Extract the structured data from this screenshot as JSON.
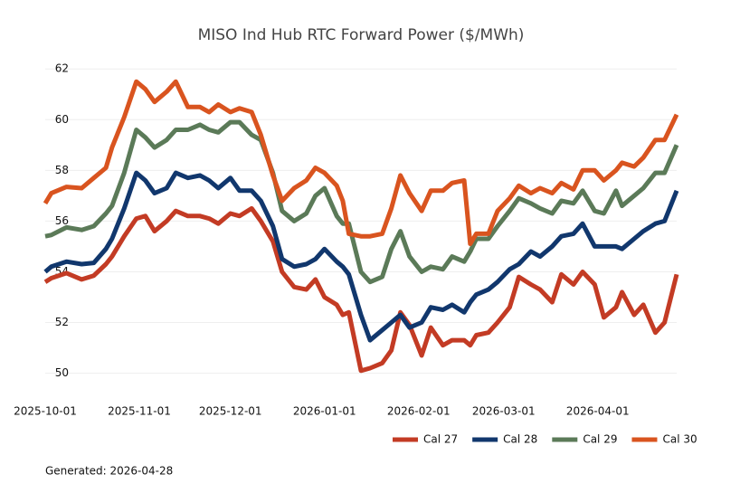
{
  "chart_data": {
    "type": "line",
    "title": "MISO Ind Hub RTC Forward Power ($/MWh)",
    "footnote": "Generated: 2026-04-28",
    "x": [
      "2025-10-01",
      "2025-10-03",
      "2025-10-08",
      "2025-10-13",
      "2025-10-17",
      "2025-10-21",
      "2025-10-23",
      "2025-10-27",
      "2025-10-31",
      "2025-11-03",
      "2025-11-06",
      "2025-11-10",
      "2025-11-13",
      "2025-11-17",
      "2025-11-21",
      "2025-11-24",
      "2025-11-27",
      "2025-12-01",
      "2025-12-04",
      "2025-12-08",
      "2025-12-11",
      "2025-12-15",
      "2025-12-18",
      "2025-12-22",
      "2025-12-26",
      "2025-12-29",
      "2026-01-01",
      "2026-01-05",
      "2026-01-07",
      "2026-01-09",
      "2026-01-13",
      "2026-01-16",
      "2026-01-20",
      "2026-01-23",
      "2026-01-26",
      "2026-01-29",
      "2026-02-02",
      "2026-02-05",
      "2026-02-09",
      "2026-02-12",
      "2026-02-16",
      "2026-02-18",
      "2026-02-20",
      "2026-02-24",
      "2026-02-27",
      "2026-03-03",
      "2026-03-06",
      "2026-03-10",
      "2026-03-13",
      "2026-03-17",
      "2026-03-20",
      "2026-03-24",
      "2026-03-27",
      "2026-03-31",
      "2026-04-03",
      "2026-04-07",
      "2026-04-09",
      "2026-04-13",
      "2026-04-16",
      "2026-04-20",
      "2026-04-23",
      "2026-04-27"
    ],
    "series": [
      {
        "name": "Cal 27",
        "color": "#c33b24",
        "values": [
          53.6,
          53.75,
          53.95,
          53.7,
          53.85,
          54.3,
          54.6,
          55.4,
          56.1,
          56.2,
          55.6,
          56.0,
          56.4,
          56.2,
          56.2,
          56.1,
          55.9,
          56.3,
          56.2,
          56.5,
          56.0,
          55.2,
          54.0,
          53.4,
          53.3,
          53.7,
          53.0,
          52.7,
          52.3,
          52.4,
          50.1,
          50.2,
          50.4,
          50.9,
          52.4,
          51.9,
          50.7,
          51.8,
          51.1,
          51.3,
          51.3,
          51.1,
          51.5,
          51.6,
          52.0,
          52.6,
          53.8,
          53.5,
          53.3,
          52.8,
          53.9,
          53.5,
          54.0,
          53.5,
          52.2,
          52.6,
          53.2,
          52.3,
          52.7,
          51.6,
          52.0,
          53.9
        ]
      },
      {
        "name": "Cal 28",
        "color": "#11376d",
        "values": [
          54.0,
          54.2,
          54.4,
          54.3,
          54.35,
          54.9,
          55.3,
          56.5,
          57.9,
          57.6,
          57.1,
          57.3,
          57.9,
          57.7,
          57.8,
          57.6,
          57.3,
          57.7,
          57.2,
          57.2,
          56.8,
          55.8,
          54.5,
          54.2,
          54.3,
          54.5,
          54.9,
          54.4,
          54.2,
          53.9,
          52.3,
          51.3,
          51.7,
          52.0,
          52.3,
          51.8,
          52.0,
          52.6,
          52.5,
          52.7,
          52.4,
          52.8,
          53.1,
          53.3,
          53.6,
          54.1,
          54.3,
          54.8,
          54.6,
          55.0,
          55.4,
          55.5,
          55.9,
          55.0,
          55.0,
          55.0,
          54.9,
          55.3,
          55.6,
          55.9,
          56.0,
          57.2
        ]
      },
      {
        "name": "Cal 29",
        "color": "#5b7a58",
        "values": [
          55.4,
          55.45,
          55.75,
          55.65,
          55.8,
          56.3,
          56.6,
          57.9,
          59.6,
          59.3,
          58.9,
          59.2,
          59.6,
          59.6,
          59.8,
          59.6,
          59.5,
          59.9,
          59.9,
          59.4,
          59.2,
          57.9,
          56.4,
          56.0,
          56.3,
          57.0,
          57.3,
          56.2,
          55.9,
          55.9,
          54.0,
          53.6,
          53.8,
          54.9,
          55.6,
          54.6,
          54.0,
          54.2,
          54.1,
          54.6,
          54.4,
          54.8,
          55.3,
          55.3,
          55.8,
          56.4,
          56.9,
          56.7,
          56.5,
          56.3,
          56.8,
          56.7,
          57.2,
          56.4,
          56.3,
          57.2,
          56.6,
          57.0,
          57.3,
          57.9,
          57.9,
          59.0
        ]
      },
      {
        "name": "Cal 30",
        "color": "#d9541f",
        "values": [
          56.7,
          57.1,
          57.35,
          57.3,
          57.7,
          58.1,
          58.9,
          60.1,
          61.5,
          61.2,
          60.7,
          61.1,
          61.5,
          60.5,
          60.5,
          60.3,
          60.6,
          60.3,
          60.45,
          60.3,
          59.4,
          57.8,
          56.8,
          57.3,
          57.6,
          58.1,
          57.9,
          57.4,
          56.8,
          55.5,
          55.4,
          55.4,
          55.5,
          56.5,
          57.8,
          57.1,
          56.4,
          57.2,
          57.2,
          57.5,
          57.6,
          55.1,
          55.5,
          55.5,
          56.4,
          56.9,
          57.4,
          57.1,
          57.3,
          57.1,
          57.5,
          57.25,
          58.0,
          58.0,
          57.6,
          58.0,
          58.3,
          58.15,
          58.5,
          59.2,
          59.2,
          60.2
        ]
      }
    ],
    "xlim": [
      "2025-10-01",
      "2026-04-27"
    ],
    "xticks": [
      "2025-10-01",
      "2025-11-01",
      "2025-12-01",
      "2026-01-01",
      "2026-02-01",
      "2026-03-01",
      "2026-04-01"
    ],
    "ylim": [
      49.2,
      62.4
    ],
    "yticks": [
      50,
      52,
      54,
      56,
      58,
      60,
      62
    ],
    "grid": true,
    "legend": "bottom-right"
  }
}
